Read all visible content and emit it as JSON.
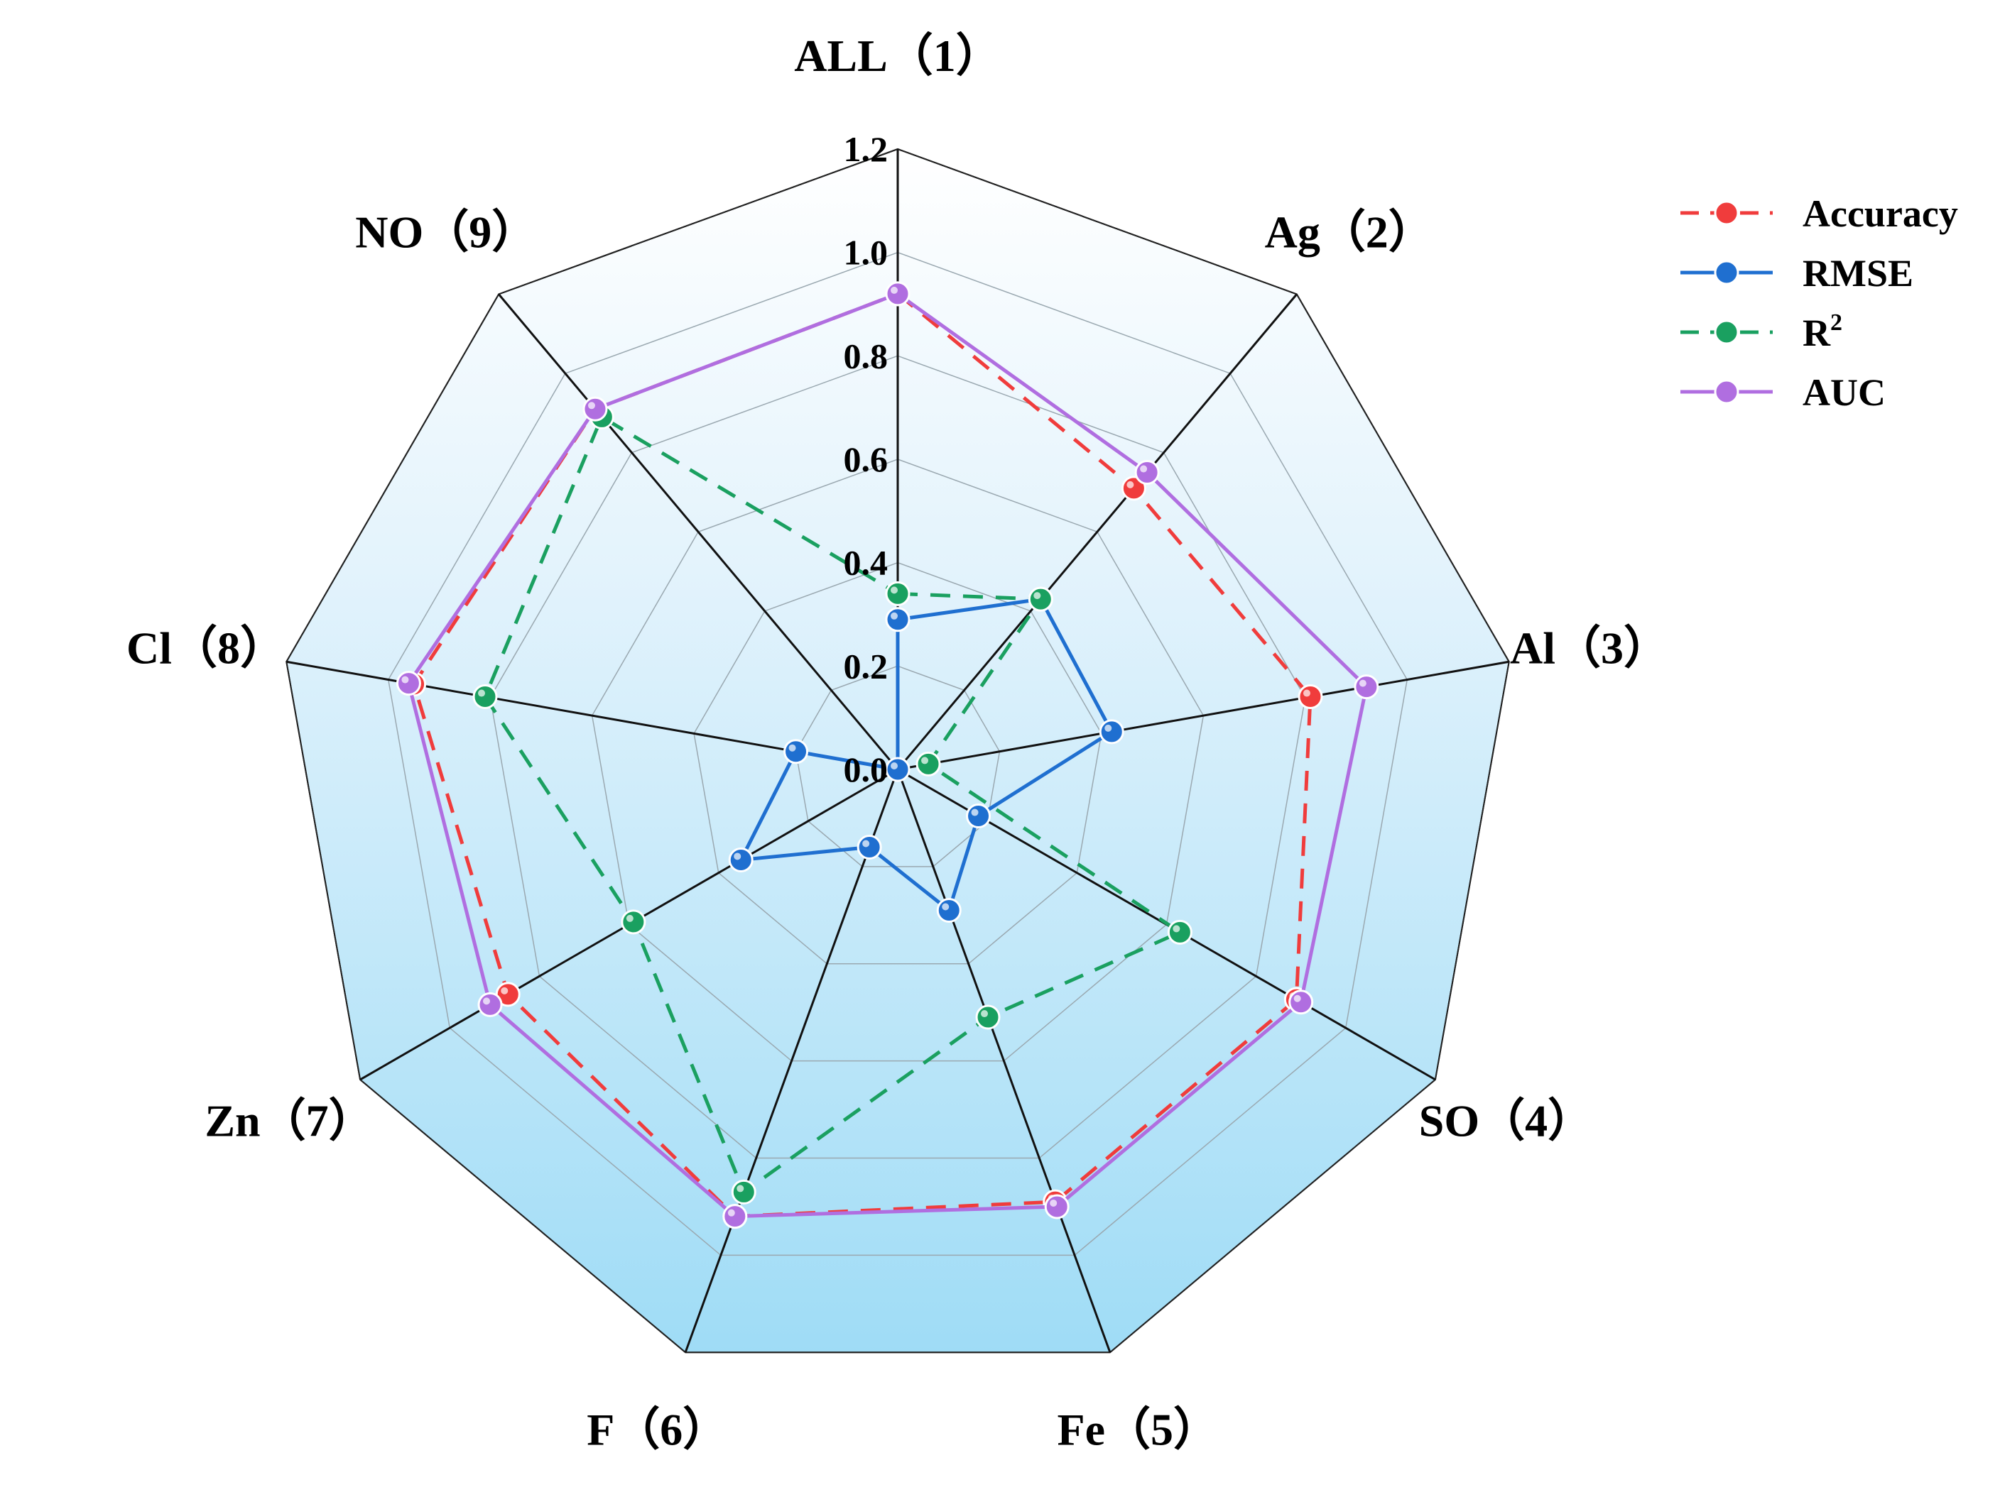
{
  "chart_data": {
    "type": "radar",
    "categories": [
      "ALL（1）",
      "Ag（2）",
      "Al（3）",
      "SO（4）",
      "Fe（5）",
      "F（6）",
      "Zn（7）",
      "Cl（8）",
      "NO（9）"
    ],
    "rlim": [
      0,
      1.2
    ],
    "ticks": [
      "0.0",
      "0.2",
      "0.4",
      "0.6",
      "0.8",
      "1.0",
      "1.2"
    ],
    "tick_values": [
      0,
      0.2,
      0.4,
      0.6,
      0.8,
      1.0,
      1.2
    ],
    "grid": true,
    "legend_position": "top-right",
    "series": [
      {
        "name": "Accuracy",
        "color": "#f03c3c",
        "line": "dashed",
        "values": [
          0.92,
          0.71,
          0.81,
          0.89,
          0.89,
          0.92,
          0.87,
          0.95,
          0.91
        ]
      },
      {
        "name": "RMSE",
        "color": "#1f6fd0",
        "line": "solid",
        "values": [
          0.29,
          0.43,
          0.42,
          0.18,
          0.29,
          0.16,
          0.35,
          0.2,
          0.0
        ]
      },
      {
        "name": "R",
        "name_sup": "2",
        "color": "#1aa060",
        "line": "dashed",
        "values": [
          0.34,
          0.43,
          0.06,
          0.63,
          0.51,
          0.87,
          0.59,
          0.81,
          0.89
        ]
      },
      {
        "name": "AUC",
        "color": "#b06ee0",
        "line": "solid",
        "values": [
          0.92,
          0.75,
          0.92,
          0.9,
          0.9,
          0.92,
          0.91,
          0.96,
          0.91
        ]
      }
    ]
  }
}
